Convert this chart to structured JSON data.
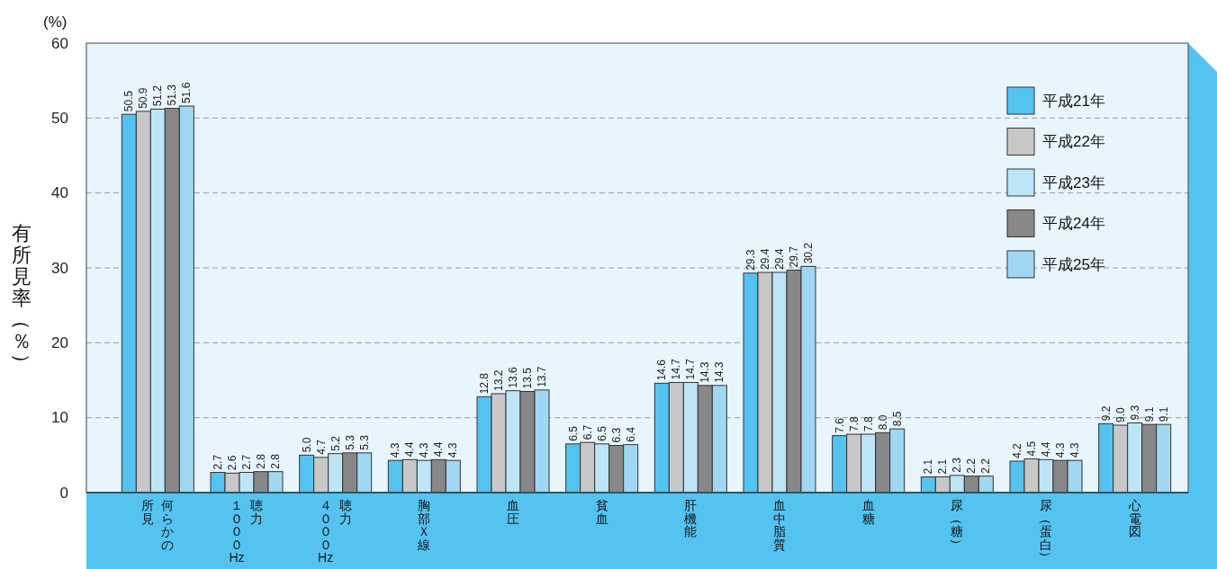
{
  "chart_data": {
    "type": "bar",
    "ylabel": "有所見率（％）",
    "annotations": [
      "(%)"
    ],
    "categories": [
      "何らかの所見",
      "聴力１０００Hz",
      "聴力４０００Hz",
      "胸部Ｘ線",
      "血圧",
      "貧血",
      "肝機能",
      "血中脂質",
      "血糖",
      "尿（糖）",
      "尿（蛋白）",
      "心電図"
    ],
    "series": [
      {
        "name": "平成21年",
        "color": "#55c3f0",
        "values": [
          50.5,
          2.7,
          5.0,
          4.3,
          12.8,
          6.5,
          14.6,
          29.3,
          7.6,
          2.1,
          4.2,
          9.2
        ],
        "value_labels": [
          "50.5",
          "2.7",
          "5.0",
          "4.3",
          "12.8",
          "6.5",
          "14.6",
          "29.3",
          "7.6",
          "2.1",
          "4.2",
          "9.2"
        ]
      },
      {
        "name": "平成22年",
        "color": "#c8c8c8",
        "values": [
          50.9,
          2.6,
          4.7,
          4.4,
          13.2,
          6.7,
          14.7,
          29.4,
          7.8,
          2.1,
          4.5,
          9.0
        ],
        "value_labels": [
          "50.9",
          "2.6",
          "4.7",
          "4.4",
          "13.2",
          "6.7",
          "14.7",
          "29.4",
          "7.8",
          "2.1",
          "4.5",
          "9.0"
        ]
      },
      {
        "name": "平成23年",
        "color": "#bde5f8",
        "values": [
          51.2,
          2.7,
          5.2,
          4.3,
          13.6,
          6.5,
          14.7,
          29.4,
          7.8,
          2.3,
          4.4,
          9.3
        ],
        "value_labels": [
          "51.2",
          "2.7",
          "5.2",
          "4.3",
          "13.6",
          "6.5",
          "14.7",
          "29.4",
          "7.8",
          "2.3",
          "4.4",
          "9.3"
        ]
      },
      {
        "name": "平成24年",
        "color": "#888888",
        "values": [
          51.3,
          2.8,
          5.3,
          4.4,
          13.5,
          6.3,
          14.3,
          29.7,
          8.0,
          2.2,
          4.3,
          9.1
        ],
        "value_labels": [
          "51.3",
          "2.8",
          "5.3",
          "4.4",
          "13.5",
          "6.3",
          "14.3",
          "29.7",
          "8.0",
          "2.2",
          "4.3",
          "9.1"
        ]
      },
      {
        "name": "平成25年",
        "color": "#a0d8f4",
        "values": [
          51.6,
          2.8,
          5.3,
          4.3,
          13.7,
          6.4,
          14.3,
          30.2,
          8.5,
          2.2,
          4.3,
          9.1
        ],
        "value_labels": [
          "51.6",
          "2.8",
          "5.3",
          "4.3",
          "13.7",
          "6.4",
          "14.3",
          "30.2",
          "8.5",
          "2.2",
          "4.3",
          "9.1"
        ]
      }
    ],
    "ylim": [
      0,
      60
    ],
    "yticks": [
      0,
      10,
      20,
      30,
      40,
      50,
      60
    ],
    "grid": "y",
    "legend": "top right"
  }
}
